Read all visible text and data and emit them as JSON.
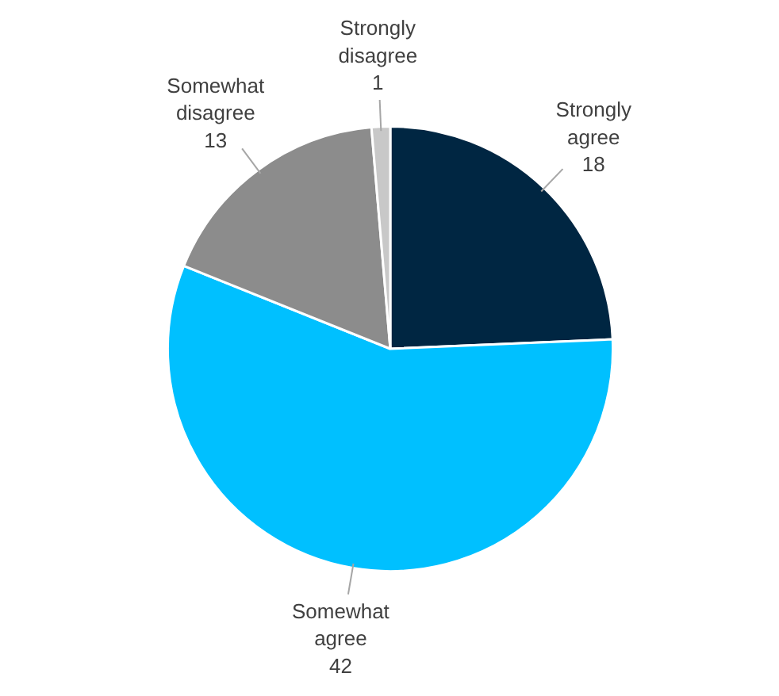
{
  "chart_data": {
    "type": "pie",
    "categories": [
      "Strongly agree",
      "Somewhat agree",
      "Somewhat disagree",
      "Strongly disagree"
    ],
    "values": [
      18,
      42,
      13,
      1
    ],
    "colors": [
      "#002642",
      "#00c0ff",
      "#8c8c8c",
      "#c8c8c8"
    ],
    "data_labels": true
  }
}
